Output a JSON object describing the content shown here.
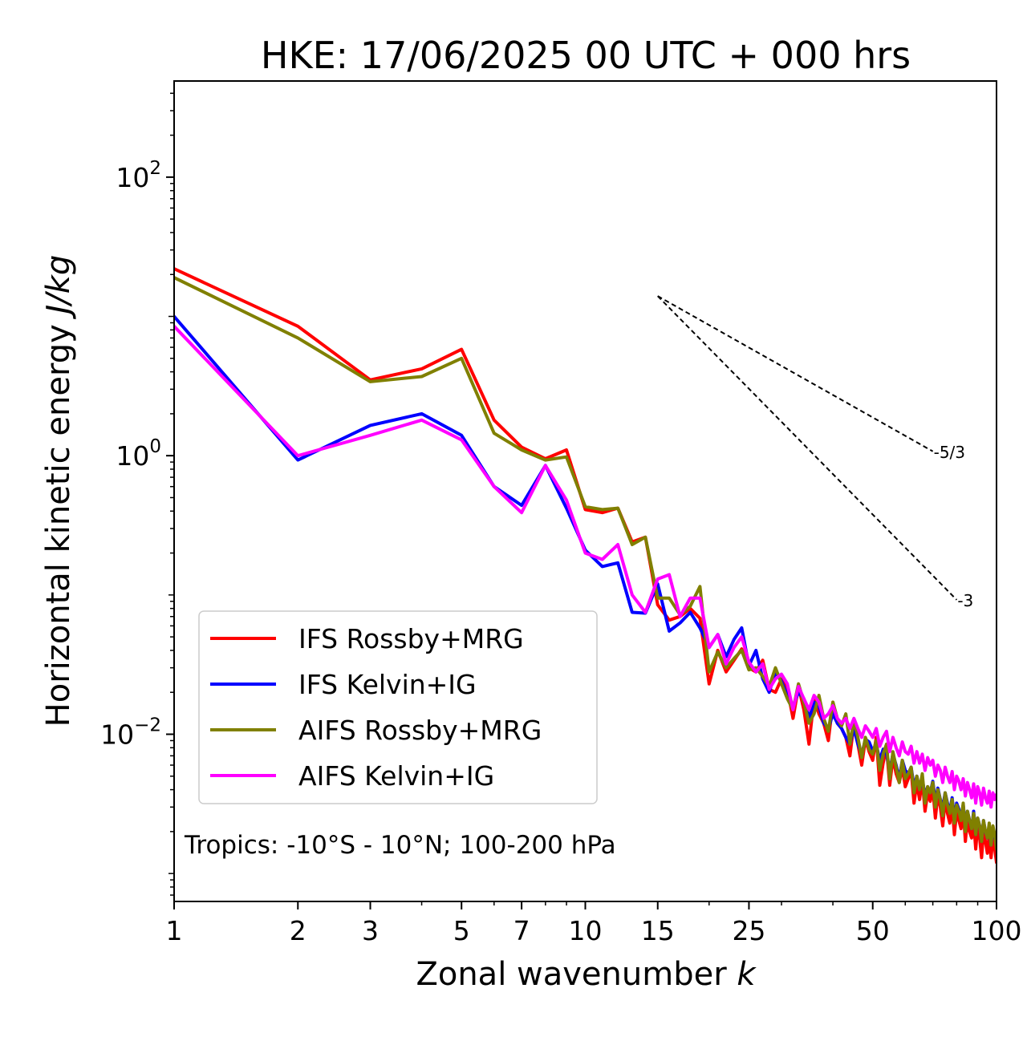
{
  "chart_data": {
    "type": "line",
    "title": "HKE: 17/06/2025 00 UTC + 000 hrs",
    "xlabel": "Zonal wavenumber",
    "xlabel_italic": "k",
    "ylabel": "Horizontal kinetic energy",
    "ylabel_italic": "J/kg",
    "xscale": "log",
    "yscale": "log",
    "xlim": [
      1,
      100
    ],
    "ylim": [
      0.00063,
      490
    ],
    "x_ticks": [
      1,
      2,
      3,
      5,
      7,
      10,
      15,
      25,
      50,
      100
    ],
    "x_tick_labels": [
      "1",
      "2",
      "3",
      "5",
      "7",
      "10",
      "15",
      "25",
      "50",
      "100"
    ],
    "y_ticks": [
      0.01,
      1,
      100
    ],
    "y_tick_labels": [
      {
        "base": "10",
        "exp": "−2"
      },
      {
        "base": "10",
        "exp": "0"
      },
      {
        "base": "10",
        "exp": "2"
      }
    ],
    "grid": false,
    "legend_position": "lower-left",
    "annotation": "Tropics: -10°S - 10°N; 100-200 hPa",
    "reference_slopes": [
      {
        "label": "-5/3",
        "slope": -1.6667,
        "x_start": 15,
        "y_start": 14,
        "x_end": 70
      },
      {
        "label": "-3",
        "slope": -3,
        "x_start": 15,
        "y_start": 14,
        "x_end": 80
      }
    ],
    "series": [
      {
        "name": "IFS Rossby+MRG",
        "color": "#ff0000",
        "x": [
          1,
          2,
          3,
          4,
          5,
          6,
          7,
          8,
          9,
          10,
          11,
          12,
          13,
          14,
          15,
          16,
          17,
          18,
          19,
          20,
          21,
          22,
          23,
          24,
          25,
          26,
          27,
          28,
          29,
          30,
          31,
          32,
          33,
          34,
          35,
          36,
          37,
          38,
          39,
          40,
          41,
          42,
          43,
          44,
          45,
          46,
          47,
          48,
          49,
          50,
          51,
          52,
          53,
          54,
          55,
          56,
          57,
          58,
          59,
          60,
          61,
          62,
          63,
          64,
          65,
          66,
          67,
          68,
          69,
          70,
          71,
          72,
          73,
          74,
          75,
          76,
          77,
          78,
          79,
          80,
          81,
          82,
          83,
          84,
          85,
          86,
          87,
          88,
          89,
          90,
          91,
          92,
          93,
          94,
          95,
          96,
          97,
          98,
          99,
          100
        ],
        "values": [
          22,
          8.5,
          3.5,
          4.2,
          5.8,
          1.8,
          1.15,
          0.95,
          1.1,
          0.41,
          0.39,
          0.42,
          0.24,
          0.26,
          0.085,
          0.066,
          0.07,
          0.08,
          0.068,
          0.023,
          0.04,
          0.028,
          0.034,
          0.041,
          0.03,
          0.028,
          0.034,
          0.021,
          0.02,
          0.025,
          0.021,
          0.013,
          0.022,
          0.015,
          0.0085,
          0.018,
          0.014,
          0.012,
          0.009,
          0.017,
          0.012,
          0.011,
          0.0095,
          0.007,
          0.012,
          0.0085,
          0.006,
          0.0092,
          0.0075,
          0.0065,
          0.0095,
          0.0043,
          0.0062,
          0.008,
          0.0043,
          0.0068,
          0.0052,
          0.0045,
          0.0058,
          0.0042,
          0.0048,
          0.0055,
          0.0032,
          0.0045,
          0.0034,
          0.0047,
          0.0028,
          0.0038,
          0.0033,
          0.0041,
          0.0025,
          0.0037,
          0.003,
          0.0022,
          0.0034,
          0.0027,
          0.0023,
          0.0031,
          0.0019,
          0.0028,
          0.0024,
          0.0021,
          0.0029,
          0.0017,
          0.0025,
          0.002,
          0.0018,
          0.0024,
          0.0015,
          0.0022,
          0.0018,
          0.0013,
          0.002,
          0.0017,
          0.0014,
          0.0019,
          0.0013,
          0.0018,
          0.0015,
          0.0012
        ]
      },
      {
        "name": "IFS Kelvin+IG",
        "color": "#0000ff",
        "x": [
          1,
          2,
          3,
          4,
          5,
          6,
          7,
          8,
          9,
          10,
          11,
          12,
          13,
          14,
          15,
          16,
          17,
          18,
          19,
          20,
          21,
          22,
          23,
          24,
          25,
          26,
          27,
          28,
          29,
          30,
          31,
          32,
          33,
          34,
          35,
          36,
          37,
          38,
          39,
          40,
          41,
          42,
          43,
          44,
          45,
          46,
          47,
          48,
          49,
          50,
          51,
          52,
          53,
          54,
          55,
          56,
          57,
          58,
          59,
          60,
          61,
          62,
          63,
          64,
          65,
          66,
          67,
          68,
          69,
          70,
          71,
          72,
          73,
          74,
          75,
          76,
          77,
          78,
          79,
          80,
          81,
          82,
          83,
          84,
          85,
          86,
          87,
          88,
          89,
          90,
          91,
          92,
          93,
          94,
          95,
          96,
          97,
          98,
          99,
          100
        ],
        "values": [
          10,
          0.93,
          1.65,
          2.0,
          1.4,
          0.6,
          0.44,
          0.85,
          0.42,
          0.21,
          0.16,
          0.17,
          0.075,
          0.074,
          0.12,
          0.055,
          0.063,
          0.075,
          0.058,
          0.042,
          0.052,
          0.036,
          0.048,
          0.058,
          0.031,
          0.04,
          0.025,
          0.02,
          0.028,
          0.024,
          0.019,
          0.016,
          0.02,
          0.018,
          0.013,
          0.017,
          0.016,
          0.012,
          0.011,
          0.014,
          0.012,
          0.011,
          0.0095,
          0.0085,
          0.011,
          0.0085,
          0.0072,
          0.0092,
          0.0088,
          0.0076,
          0.0085,
          0.0065,
          0.0078,
          0.0072,
          0.0055,
          0.0072,
          0.006,
          0.0048,
          0.0065,
          0.0055,
          0.0052,
          0.0058,
          0.0042,
          0.005,
          0.004,
          0.0048,
          0.0036,
          0.0042,
          0.0038,
          0.0046,
          0.0033,
          0.0041,
          0.0034,
          0.003,
          0.0038,
          0.0032,
          0.0028,
          0.0035,
          0.0025,
          0.0032,
          0.0029,
          0.0025,
          0.0031,
          0.0022,
          0.0028,
          0.0024,
          0.0021,
          0.0028,
          0.0019,
          0.0025,
          0.0022,
          0.0017,
          0.0024,
          0.002,
          0.0018,
          0.0022,
          0.0016,
          0.0021,
          0.0018,
          0.0017
        ]
      },
      {
        "name": "AIFS Rossby+MRG",
        "color": "#808000",
        "x": [
          1,
          2,
          3,
          4,
          5,
          6,
          7,
          8,
          9,
          10,
          11,
          12,
          13,
          14,
          15,
          16,
          17,
          18,
          19,
          20,
          21,
          22,
          23,
          24,
          25,
          26,
          27,
          28,
          29,
          30,
          31,
          32,
          33,
          34,
          35,
          36,
          37,
          38,
          39,
          40,
          41,
          42,
          43,
          44,
          45,
          46,
          47,
          48,
          49,
          50,
          51,
          52,
          53,
          54,
          55,
          56,
          57,
          58,
          59,
          60,
          61,
          62,
          63,
          64,
          65,
          66,
          67,
          68,
          69,
          70,
          71,
          72,
          73,
          74,
          75,
          76,
          77,
          78,
          79,
          80,
          81,
          82,
          83,
          84,
          85,
          86,
          87,
          88,
          89,
          90,
          91,
          92,
          93,
          94,
          95,
          96,
          97,
          98,
          99,
          100
        ],
        "values": [
          19,
          7.0,
          3.4,
          3.7,
          5.0,
          1.45,
          1.1,
          0.93,
          0.98,
          0.43,
          0.41,
          0.42,
          0.23,
          0.26,
          0.095,
          0.095,
          0.072,
          0.083,
          0.115,
          0.028,
          0.039,
          0.03,
          0.035,
          0.04,
          0.029,
          0.03,
          0.026,
          0.022,
          0.03,
          0.023,
          0.018,
          0.015,
          0.023,
          0.017,
          0.012,
          0.014,
          0.019,
          0.013,
          0.0105,
          0.017,
          0.013,
          0.0115,
          0.014,
          0.0085,
          0.0125,
          0.0095,
          0.0068,
          0.0095,
          0.0078,
          0.0072,
          0.009,
          0.0055,
          0.0072,
          0.0085,
          0.0048,
          0.0075,
          0.0058,
          0.0045,
          0.0065,
          0.0048,
          0.0052,
          0.0058,
          0.0038,
          0.005,
          0.004,
          0.0052,
          0.0032,
          0.0042,
          0.0038,
          0.0045,
          0.003,
          0.004,
          0.0034,
          0.0026,
          0.0038,
          0.0031,
          0.0027,
          0.0034,
          0.0023,
          0.0031,
          0.0028,
          0.0024,
          0.0032,
          0.002,
          0.0028,
          0.0024,
          0.0021,
          0.0027,
          0.0019,
          0.0025,
          0.0022,
          0.0017,
          0.0024,
          0.002,
          0.0018,
          0.0023,
          0.0016,
          0.0022,
          0.0019,
          0.0015
        ]
      },
      {
        "name": "AIFS Kelvin+IG",
        "color": "#ff00ff",
        "x": [
          1,
          2,
          3,
          4,
          5,
          6,
          7,
          8,
          9,
          10,
          11,
          12,
          13,
          14,
          15,
          16,
          17,
          18,
          19,
          20,
          21,
          22,
          23,
          24,
          25,
          26,
          27,
          28,
          29,
          30,
          31,
          32,
          33,
          34,
          35,
          36,
          37,
          38,
          39,
          40,
          41,
          42,
          43,
          44,
          45,
          46,
          47,
          48,
          49,
          50,
          51,
          52,
          53,
          54,
          55,
          56,
          57,
          58,
          59,
          60,
          61,
          62,
          63,
          64,
          65,
          66,
          67,
          68,
          69,
          70,
          71,
          72,
          73,
          74,
          75,
          76,
          77,
          78,
          79,
          80,
          81,
          82,
          83,
          84,
          85,
          86,
          87,
          88,
          89,
          90,
          91,
          92,
          93,
          94,
          95,
          96,
          97,
          98,
          99,
          100
        ],
        "values": [
          8.5,
          1.0,
          1.4,
          1.8,
          1.3,
          0.6,
          0.39,
          0.85,
          0.48,
          0.2,
          0.18,
          0.23,
          0.1,
          0.075,
          0.13,
          0.14,
          0.07,
          0.095,
          0.095,
          0.042,
          0.052,
          0.032,
          0.042,
          0.05,
          0.033,
          0.028,
          0.032,
          0.021,
          0.025,
          0.027,
          0.023,
          0.015,
          0.022,
          0.018,
          0.015,
          0.019,
          0.017,
          0.013,
          0.014,
          0.016,
          0.013,
          0.012,
          0.013,
          0.011,
          0.013,
          0.011,
          0.0095,
          0.0115,
          0.0105,
          0.0095,
          0.011,
          0.0082,
          0.0095,
          0.0105,
          0.0075,
          0.0095,
          0.008,
          0.007,
          0.0088,
          0.0075,
          0.0072,
          0.0082,
          0.0062,
          0.0075,
          0.0062,
          0.0072,
          0.0055,
          0.0068,
          0.006,
          0.0065,
          0.005,
          0.006,
          0.0055,
          0.0045,
          0.0058,
          0.005,
          0.0045,
          0.0054,
          0.004,
          0.005,
          0.0046,
          0.004,
          0.0048,
          0.0036,
          0.0045,
          0.004,
          0.0035,
          0.0044,
          0.0032,
          0.0042,
          0.0038,
          0.0031,
          0.0041,
          0.0035,
          0.0032,
          0.0039,
          0.003,
          0.0038,
          0.0034,
          0.0037
        ]
      }
    ]
  }
}
